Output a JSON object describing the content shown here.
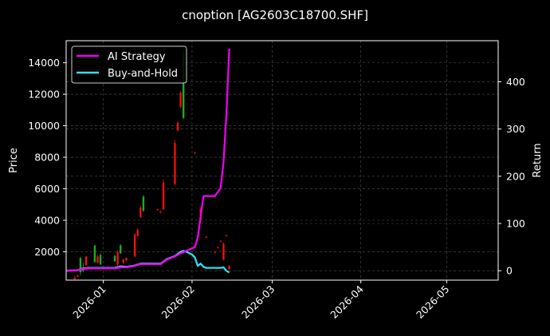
{
  "chart_data": {
    "type": "candlestick+line",
    "title": "cnoption [AG2603C18700.SHF]",
    "xlabel": "",
    "ylabel_left": "Price",
    "ylabel_right": "Return",
    "x_ticks": [
      "2026-01",
      "2026-02",
      "2026-03",
      "2026-04",
      "2026-05"
    ],
    "y_left_ticks": [
      2000,
      4000,
      6000,
      8000,
      10000,
      12000,
      14000
    ],
    "y_right_ticks": [
      0,
      100,
      200,
      300,
      400
    ],
    "ylim_left": [
      200,
      15400
    ],
    "ylim_right": [
      -20,
      487
    ],
    "xlim": [
      "2025-12-19",
      "2026-05-19"
    ],
    "grid": true,
    "legend_position": "upper left",
    "legend": [
      {
        "label": "AI Strategy",
        "color": "#ee00ee"
      },
      {
        "label": "Buy-and-Hold",
        "color": "#33ddee"
      }
    ],
    "candles": [
      {
        "date": "2025-12-22",
        "open": 350,
        "close": 250,
        "high": 450,
        "low": 200,
        "dir": "down"
      },
      {
        "date": "2025-12-23",
        "open": 500,
        "close": 420,
        "high": 550,
        "low": 400,
        "dir": "down"
      },
      {
        "date": "2025-12-24",
        "open": 700,
        "close": 1600,
        "high": 1700,
        "low": 500,
        "dir": "up"
      },
      {
        "date": "2025-12-25",
        "open": 800,
        "close": 1000,
        "high": 1300,
        "low": 700,
        "dir": "up"
      },
      {
        "date": "2025-12-26",
        "open": 1700,
        "close": 1150,
        "high": 1750,
        "low": 1100,
        "dir": "down"
      },
      {
        "date": "2025-12-29",
        "open": 1350,
        "close": 2400,
        "high": 2450,
        "low": 1300,
        "dir": "up"
      },
      {
        "date": "2025-12-30",
        "open": 1700,
        "close": 1300,
        "high": 1800,
        "low": 1250,
        "dir": "down"
      },
      {
        "date": "2025-12-31",
        "open": 1200,
        "close": 1800,
        "high": 1900,
        "low": 1150,
        "dir": "up"
      },
      {
        "date": "2026-01-05",
        "open": 1400,
        "close": 1750,
        "high": 1800,
        "low": 1350,
        "dir": "up"
      },
      {
        "date": "2026-01-06",
        "open": 2000,
        "close": 1200,
        "high": 2100,
        "low": 1100,
        "dir": "down"
      },
      {
        "date": "2026-01-07",
        "open": 1900,
        "close": 2400,
        "high": 2500,
        "low": 1850,
        "dir": "up"
      },
      {
        "date": "2026-01-08",
        "open": 1500,
        "close": 1300,
        "high": 1550,
        "low": 1250,
        "dir": "down"
      },
      {
        "date": "2026-01-09",
        "open": 1600,
        "close": 1450,
        "high": 1650,
        "low": 1400,
        "dir": "down"
      },
      {
        "date": "2026-01-12",
        "open": 3100,
        "close": 1700,
        "high": 3200,
        "low": 1650,
        "dir": "down"
      },
      {
        "date": "2026-01-13",
        "open": 3400,
        "close": 3000,
        "high": 3500,
        "low": 2950,
        "dir": "down"
      },
      {
        "date": "2026-01-14",
        "open": 4800,
        "close": 4200,
        "high": 4900,
        "low": 4150,
        "dir": "down"
      },
      {
        "date": "2026-01-15",
        "open": 4600,
        "close": 5500,
        "high": 5600,
        "low": 4550,
        "dir": "up"
      },
      {
        "date": "2026-01-20",
        "open": 4700,
        "close": 4650,
        "high": 4750,
        "low": 4600,
        "dir": "down"
      },
      {
        "date": "2026-01-21",
        "open": 4550,
        "close": 4500,
        "high": 4600,
        "low": 4450,
        "dir": "down"
      },
      {
        "date": "2026-01-22",
        "open": 6400,
        "close": 4700,
        "high": 6600,
        "low": 4650,
        "dir": "down"
      },
      {
        "date": "2026-01-26",
        "open": 8900,
        "close": 6300,
        "high": 9100,
        "low": 6200,
        "dir": "down"
      },
      {
        "date": "2026-01-27",
        "open": 10200,
        "close": 9700,
        "high": 10300,
        "low": 9650,
        "dir": "down"
      },
      {
        "date": "2026-01-28",
        "open": 12100,
        "close": 11200,
        "high": 12200,
        "low": 11100,
        "dir": "down"
      },
      {
        "date": "2026-01-29",
        "open": 10500,
        "close": 14500,
        "high": 15000,
        "low": 10400,
        "dir": "up"
      },
      {
        "date": "2026-02-02",
        "open": 8300,
        "close": 8250,
        "high": 8350,
        "low": 8200,
        "dir": "down"
      },
      {
        "date": "2026-02-04",
        "open": 4700,
        "close": 4000,
        "high": 4800,
        "low": 3950,
        "dir": "down"
      },
      {
        "date": "2026-02-06",
        "open": 2950,
        "close": 2900,
        "high": 3000,
        "low": 2850,
        "dir": "down"
      },
      {
        "date": "2026-02-09",
        "open": 2000,
        "close": 1950,
        "high": 2050,
        "low": 1900,
        "dir": "down"
      },
      {
        "date": "2026-02-10",
        "open": 2300,
        "close": 2250,
        "high": 2350,
        "low": 2200,
        "dir": "down"
      },
      {
        "date": "2026-02-11",
        "open": 2700,
        "close": 2650,
        "high": 2750,
        "low": 2600,
        "dir": "down"
      },
      {
        "date": "2026-02-12",
        "open": 2500,
        "close": 1500,
        "high": 2600,
        "low": 1450,
        "dir": "down"
      },
      {
        "date": "2026-02-13",
        "open": 3050,
        "close": 3000,
        "high": 3100,
        "low": 2950,
        "dir": "down"
      },
      {
        "date": "2026-02-14",
        "open": 1100,
        "close": 900,
        "high": 1150,
        "low": 850,
        "dir": "down"
      }
    ],
    "series": [
      {
        "name": "AI Strategy",
        "axis": "right",
        "color": "#ee00ee",
        "x": [
          "2025-12-19",
          "2025-12-23",
          "2025-12-25",
          "2025-12-27",
          "2025-12-30",
          "2026-01-02",
          "2026-01-05",
          "2026-01-07",
          "2026-01-09",
          "2026-01-12",
          "2026-01-14",
          "2026-01-16",
          "2026-01-19",
          "2026-01-21",
          "2026-01-23",
          "2026-01-26",
          "2026-01-28",
          "2026-01-30",
          "2026-02-02",
          "2026-02-03",
          "2026-02-04",
          "2026-02-05",
          "2026-02-06",
          "2026-02-09",
          "2026-02-11",
          "2026-02-12",
          "2026-02-13",
          "2026-02-14"
        ],
        "values": [
          0,
          1,
          4,
          5,
          5,
          5,
          5,
          7,
          7,
          10,
          14,
          14,
          14,
          14,
          23,
          30,
          37,
          42,
          50,
          70,
          115,
          158,
          158,
          158,
          175,
          230,
          330,
          470
        ]
      },
      {
        "name": "Buy-and-Hold",
        "axis": "right",
        "color": "#33ddee",
        "x": [
          "2025-12-19",
          "2025-12-23",
          "2025-12-25",
          "2025-12-27",
          "2025-12-30",
          "2026-01-02",
          "2026-01-05",
          "2026-01-07",
          "2026-01-09",
          "2026-01-12",
          "2026-01-14",
          "2026-01-16",
          "2026-01-19",
          "2026-01-21",
          "2026-01-23",
          "2026-01-26",
          "2026-01-28",
          "2026-01-29",
          "2026-01-30",
          "2026-02-01",
          "2026-02-02",
          "2026-02-03",
          "2026-02-04",
          "2026-02-05",
          "2026-02-06",
          "2026-02-09",
          "2026-02-11",
          "2026-02-12",
          "2026-02-13",
          "2026-02-14"
        ],
        "values": [
          0,
          1,
          5,
          6,
          6,
          6,
          6,
          9,
          8,
          11,
          15,
          15,
          15,
          15,
          24,
          31,
          40,
          42,
          40,
          34,
          28,
          10,
          15,
          8,
          6,
          6,
          6,
          7,
          0,
          -4
        ]
      }
    ]
  }
}
